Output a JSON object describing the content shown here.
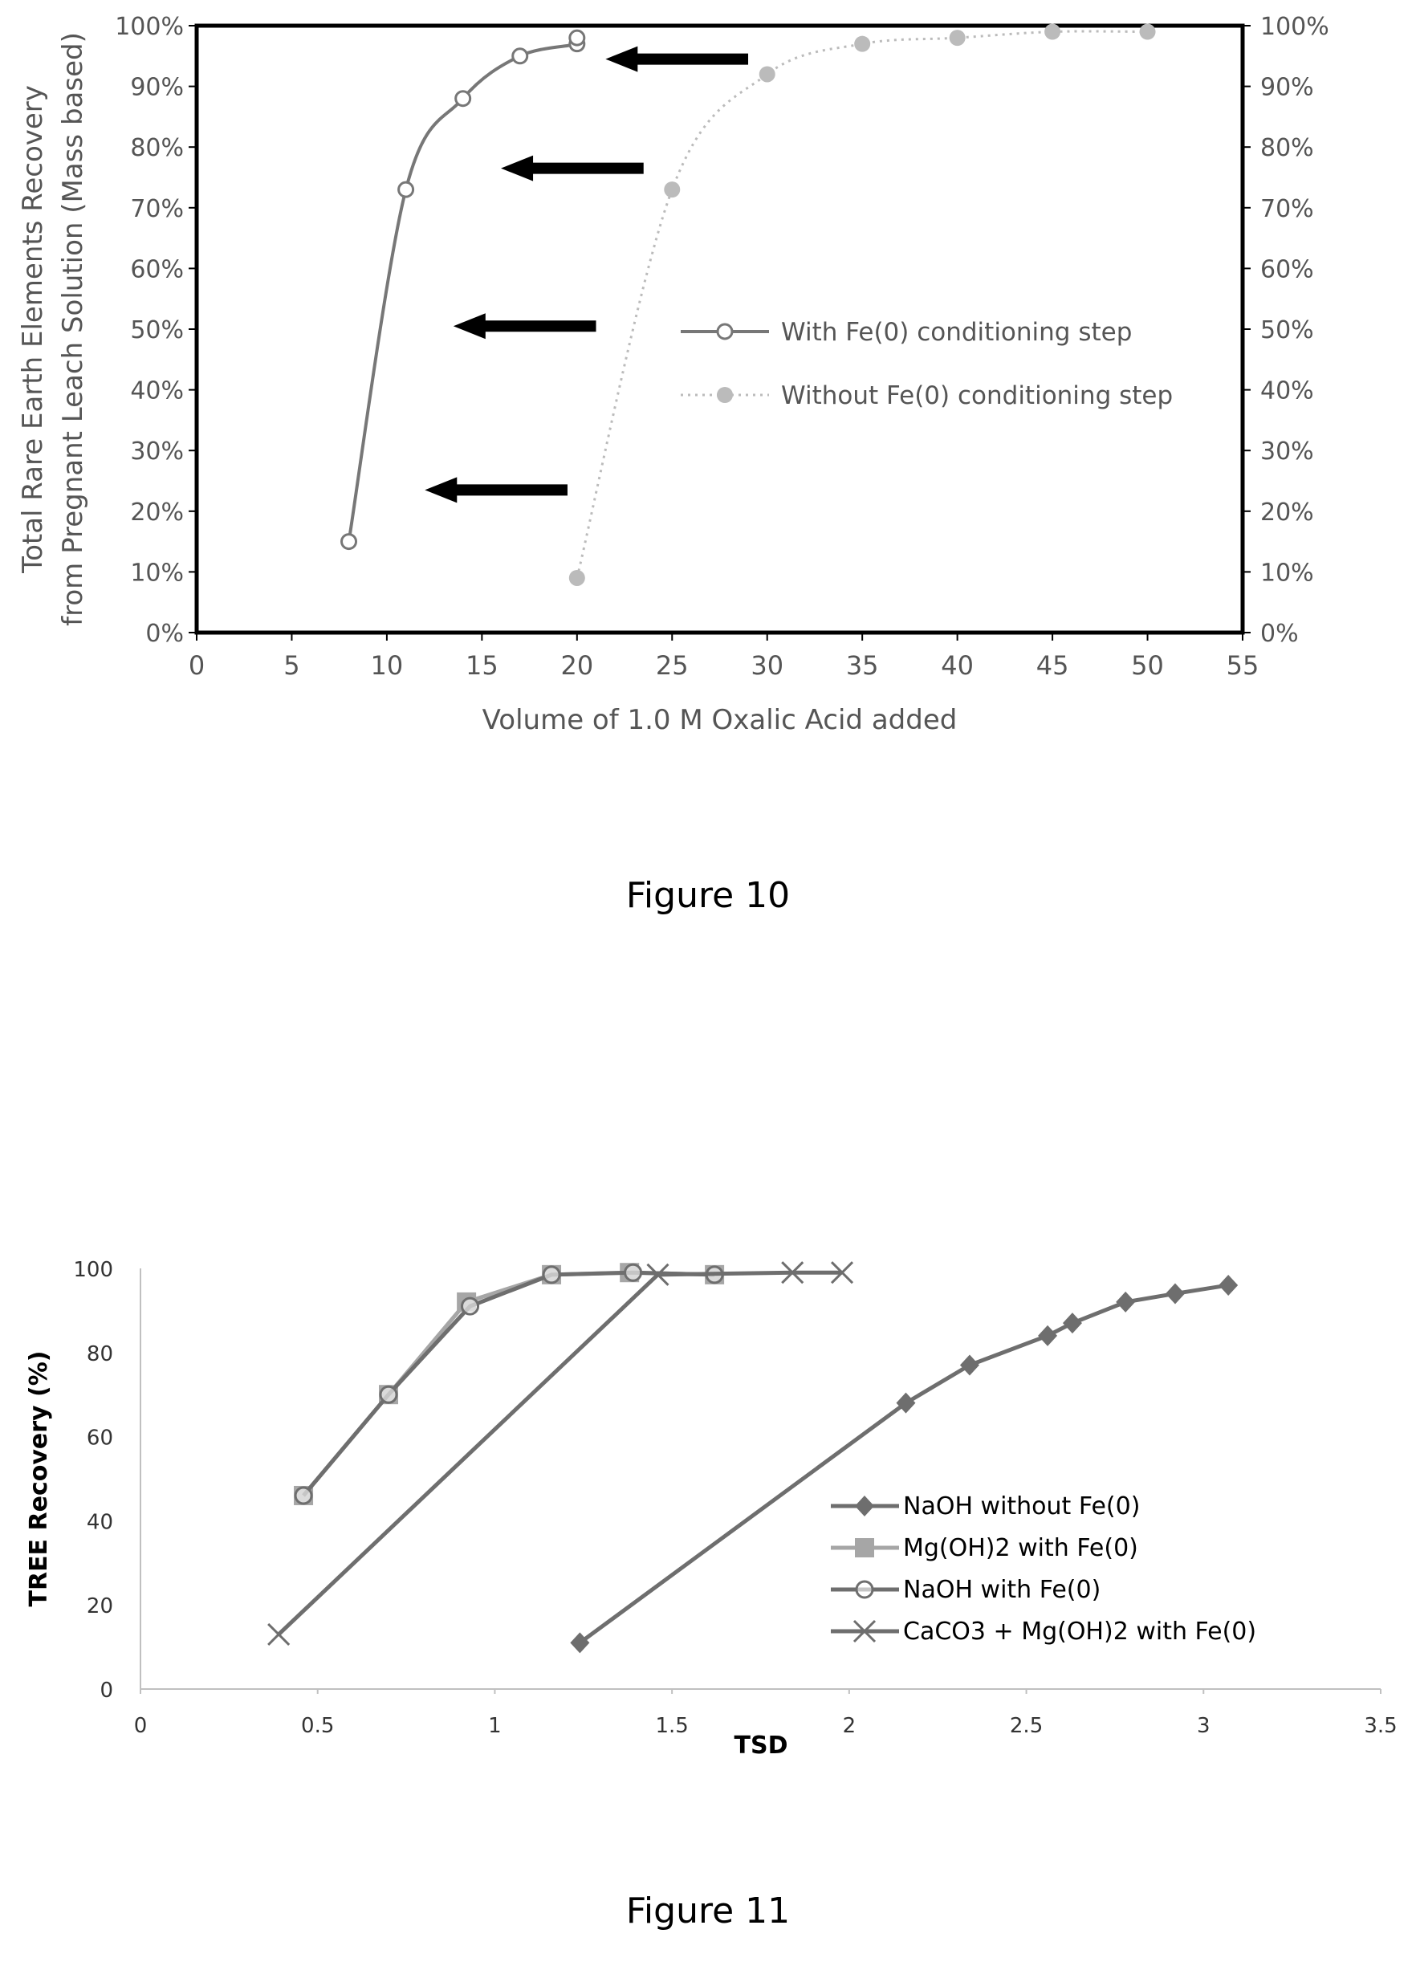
{
  "figure10": {
    "caption": "Figure 10",
    "chart_data": {
      "type": "line",
      "xlabel": "Volume of 1.0 M Oxalic Acid added",
      "ylabel": "Total Rare Earth Elements Recovery from Pregnant Leach Solution (Mass based)",
      "xlim": [
        0,
        55
      ],
      "ylim": [
        0,
        100
      ],
      "x_ticks": [
        "0",
        "5",
        "10",
        "15",
        "20",
        "25",
        "30",
        "35",
        "40",
        "45",
        "50",
        "55"
      ],
      "y_ticks": [
        "0%",
        "10%",
        "20%",
        "30%",
        "40%",
        "50%",
        "60%",
        "70%",
        "80%",
        "90%",
        "100%"
      ],
      "secondary_y_ticks": [
        "0%",
        "10%",
        "20%",
        "30%",
        "40%",
        "50%",
        "60%",
        "70%",
        "80%",
        "90%",
        "100%"
      ],
      "grid": false,
      "legend_position": "center-right",
      "series": [
        {
          "name": "With Fe(0) conditioning step",
          "style": "solid-open-circle",
          "color": "#777777",
          "x": [
            8,
            11,
            14,
            17,
            20,
            20
          ],
          "y": [
            15,
            73,
            88,
            95,
            97,
            98
          ]
        },
        {
          "name": "Without Fe(0) conditioning step",
          "style": "dotted-filled-circle",
          "color": "#bbbbbb",
          "x": [
            20,
            25,
            30,
            35,
            40,
            45,
            50
          ],
          "y": [
            9,
            73,
            92,
            97,
            98,
            99,
            99
          ]
        }
      ],
      "arrows": [
        {
          "from": [
            29,
            94.5
          ],
          "to": [
            21.5,
            94.5
          ]
        },
        {
          "from": [
            23.5,
            76.5
          ],
          "to": [
            16,
            76.5
          ]
        },
        {
          "from": [
            21,
            50.5
          ],
          "to": [
            13.5,
            50.5
          ]
        },
        {
          "from": [
            19.5,
            23.5
          ],
          "to": [
            12,
            23.5
          ]
        }
      ]
    }
  },
  "figure11": {
    "caption": "Figure 11",
    "chart_data": {
      "type": "line",
      "xlabel": "TSD",
      "ylabel": "TREE Recovery (%)",
      "xlim": [
        0,
        3.5
      ],
      "ylim": [
        0,
        100
      ],
      "x_ticks": [
        "0",
        "0.5",
        "1",
        "1.5",
        "2",
        "2.5",
        "3",
        "3.5"
      ],
      "y_ticks": [
        "0",
        "20",
        "40",
        "60",
        "80",
        "100"
      ],
      "grid": false,
      "legend_position": "bottom-right",
      "series": [
        {
          "name": "NaOH without Fe(0)",
          "marker": "diamond",
          "color": "#6e6e6e",
          "x": [
            1.24,
            2.16,
            2.34,
            2.56,
            2.63,
            2.78,
            2.92,
            3.07
          ],
          "y": [
            11,
            68,
            77,
            84,
            87,
            92,
            94,
            96
          ]
        },
        {
          "name": "Mg(OH)2 with Fe(0)",
          "marker": "square",
          "color": "#a6a6a6",
          "x": [
            0.46,
            0.7,
            0.92,
            1.16,
            1.38,
            1.62
          ],
          "y": [
            46,
            70,
            92,
            98.5,
            99,
            98.5
          ]
        },
        {
          "name": "NaOH with Fe(0)",
          "marker": "circle",
          "color": "#6e6e6e",
          "x": [
            0.46,
            0.7,
            0.93,
            1.16,
            1.39,
            1.62
          ],
          "y": [
            46,
            70,
            91,
            98.5,
            99,
            98.5
          ]
        },
        {
          "name": "CaCO3 + Mg(OH)2 with Fe(0)",
          "marker": "x",
          "color": "#6e6e6e",
          "x": [
            0.39,
            1.46,
            1.84,
            1.98
          ],
          "y": [
            13,
            98.5,
            99,
            99
          ]
        }
      ]
    }
  }
}
